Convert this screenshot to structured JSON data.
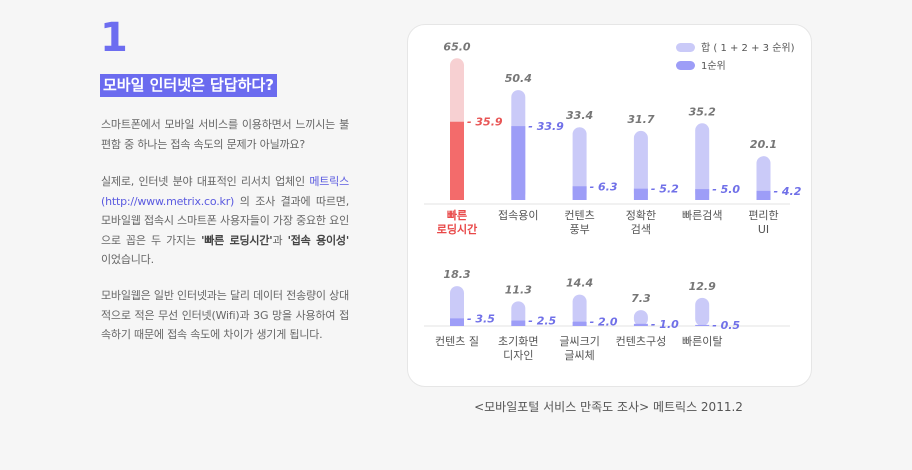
{
  "section_number": "1",
  "heading": "모바일 인터넷은 답답하다?",
  "para1": "스마트폰에서 모바일 서비스를 이용하면서 느끼시는 불편함 중 하나는 접속 속도의 문제가 아닐까요?",
  "para2": {
    "t1": "실제로, 인터넷 분야 대표적인 리서치 업체인 ",
    "link1": "메트릭스",
    "t2": " ",
    "link2": "(http://www.metrix.co.kr)",
    "t3": " 의 조사 결과에 따르면, 모바일웹 접속시 스마트폰 사용자들이 가장 중요한 요인으로 꼽은 두 가지는 ",
    "bold1": "'빠른 로딩시간'",
    "t4": "과 ",
    "bold2": "'접속 용이성'",
    "t5": " 이었습니다."
  },
  "para3": "모바일웹은 일반 인터넷과는 달리 데이터 전송량이 상대적으로 적은 무선 인터넷(Wifi)과 3G 망을 사용하여 접속하기 때문에 접속 속도에 차이가 생기게 됩니다.",
  "caption": "<모바일포털 서비스 만족도 조사> 메트릭스 2011.2",
  "colors": {
    "accent": "#6b6bef",
    "total_bar": "#cacaf8",
    "first_bar": "#9d9df7",
    "highlight_bar": "#f36b6b",
    "highlight_total": "#f7d0d2"
  },
  "chart_data": {
    "type": "bar",
    "legend": [
      "합 ( 1 + 2 + 3 순위)",
      "1순위"
    ],
    "legend_position": "top-right",
    "rows": [
      {
        "categories": [
          [
            "빠른",
            "로딩시간"
          ],
          [
            "접속용이"
          ],
          [
            "컨텐츠",
            "풍부"
          ],
          [
            "정확한",
            "검색"
          ],
          [
            "빠른검색"
          ],
          [
            "편리한",
            "UI"
          ]
        ],
        "total": [
          65.0,
          50.4,
          33.4,
          31.7,
          35.2,
          20.1
        ],
        "total_labels": [
          "65.0",
          "50.4",
          "33.4",
          "31.7",
          "35.2",
          "20.1"
        ],
        "first": [
          35.9,
          33.9,
          6.3,
          5.2,
          5.0,
          4.2
        ],
        "first_labels": [
          "35.9",
          "33.9",
          "6.3",
          "5.2",
          "5.0",
          "4.2"
        ],
        "highlight_index": 0
      },
      {
        "categories": [
          [
            "컨텐츠 질"
          ],
          [
            "초기화면",
            "디자인"
          ],
          [
            "글씨크기",
            "글씨체"
          ],
          [
            "컨텐츠구성"
          ],
          [
            "빠른이탈"
          ]
        ],
        "total": [
          18.3,
          11.3,
          14.4,
          7.3,
          12.9
        ],
        "total_labels": [
          "18.3",
          "11.3",
          "14.4",
          "7.3",
          "12.9"
        ],
        "first": [
          3.5,
          2.5,
          2.0,
          1.0,
          0.5
        ],
        "first_labels": [
          "3.5",
          "2.5",
          "2.0",
          "1.0",
          "0.5"
        ]
      }
    ]
  }
}
